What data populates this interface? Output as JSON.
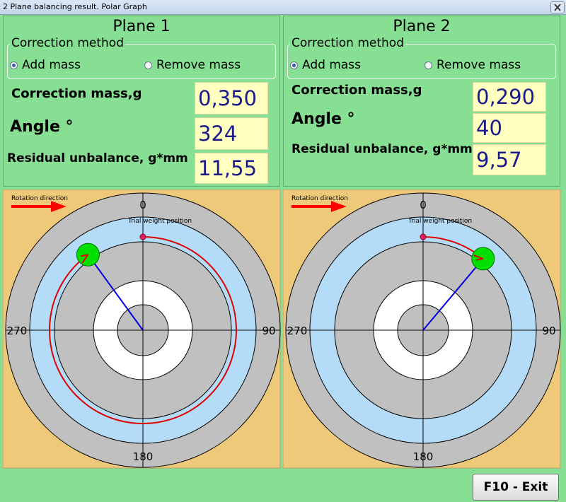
{
  "window": {
    "title": "2 Plane balancing result. Polar Graph"
  },
  "planes": [
    {
      "title": "Plane 1",
      "correction_method": {
        "label": "Correction method",
        "options": [
          "Add mass",
          "Remove mass"
        ],
        "selected": 0
      },
      "fields": [
        {
          "label": "Correction mass,g",
          "value": "0,350"
        },
        {
          "label": "Angle °",
          "value": 324
        },
        {
          "label": "Residual unbalance, g*mm",
          "value": "11,55"
        }
      ],
      "polar": {
        "rotation_label": "Rotation direction",
        "trial_label": "Trial weight position",
        "angle_ticks": [
          0,
          90,
          180,
          270
        ]
      }
    },
    {
      "title": "Plane 2",
      "correction_method": {
        "label": "Correction method",
        "options": [
          "Add mass",
          "Remove mass"
        ],
        "selected": 0
      },
      "fields": [
        {
          "label": "Correction mass,g",
          "value": "0,290"
        },
        {
          "label": "Angle °",
          "value": 40
        },
        {
          "label": "Residual unbalance, g*mm",
          "value": "9,57"
        }
      ],
      "polar": {
        "rotation_label": "Rotation direction",
        "trial_label": "Trial weight position",
        "angle_ticks": [
          0,
          90,
          180,
          270
        ]
      }
    }
  ],
  "exit_button": "F10 - Exit"
}
